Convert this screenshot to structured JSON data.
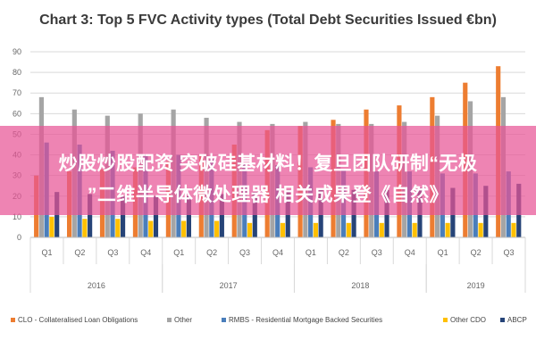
{
  "chart_data": {
    "type": "bar",
    "title": "Chart 3: Top 5 FVC Activity types (Total Debt Securities Issued €bn)",
    "ylim": [
      0,
      90
    ],
    "yticks": [
      0,
      10,
      20,
      30,
      40,
      50,
      60,
      70,
      80,
      90
    ],
    "grid": true,
    "legend_position": "bottom",
    "categories": [
      "Q1",
      "Q2",
      "Q3",
      "Q4",
      "Q1",
      "Q2",
      "Q3",
      "Q4",
      "Q1",
      "Q2",
      "Q3",
      "Q4",
      "Q1",
      "Q2",
      "Q3"
    ],
    "year_groups": [
      {
        "label": "2016",
        "start": 0,
        "end": 3
      },
      {
        "label": "2017",
        "start": 4,
        "end": 7
      },
      {
        "label": "2018",
        "start": 8,
        "end": 11
      },
      {
        "label": "2019",
        "start": 12,
        "end": 14
      }
    ],
    "series": [
      {
        "name": "CLO - Collateralised Loan Obligations",
        "color": "#ed7d31",
        "values": [
          30,
          32,
          33,
          34,
          37,
          40,
          45,
          52,
          54,
          57,
          62,
          64,
          68,
          75,
          83
        ]
      },
      {
        "name": "Other",
        "color": "#a5a5a5",
        "values": [
          68,
          62,
          59,
          60,
          62,
          58,
          56,
          55,
          56,
          55,
          55,
          56,
          59,
          66,
          68
        ]
      },
      {
        "name": "RMBS - Residential Mortgage Backed Securities",
        "color": "#4a7ebb",
        "values": [
          46,
          45,
          42,
          40,
          40,
          38,
          36,
          35,
          34,
          33,
          32,
          32,
          31,
          31,
          32
        ]
      },
      {
        "name": "Other CDO",
        "color": "#ffc000",
        "values": [
          10,
          9,
          9,
          8,
          8,
          8,
          7,
          7,
          7,
          7,
          7,
          7,
          7,
          7,
          7
        ]
      },
      {
        "name": "ABCP",
        "color": "#264478",
        "values": [
          22,
          21,
          20,
          20,
          20,
          21,
          22,
          23,
          23,
          23,
          23,
          24,
          24,
          25,
          26
        ]
      }
    ]
  },
  "banner": {
    "line1": "炒股炒股配资 突破硅基材料！复旦团队研制“无极",
    "line2": "”二维半导体微处理器 相关成果登《自然》"
  }
}
